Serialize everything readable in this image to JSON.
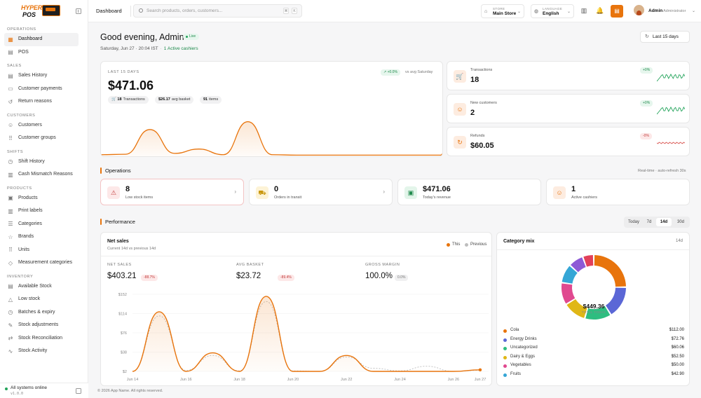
{
  "brand": {
    "line1": "HYPER",
    "line2": "POS"
  },
  "sidebar": {
    "sections": [
      {
        "title": "OPERATIONS",
        "items": [
          {
            "label": "Dashboard",
            "icon": "grid-icon",
            "glyph": "▦",
            "active": true
          },
          {
            "label": "POS",
            "icon": "pos-icon",
            "glyph": "▤"
          }
        ]
      },
      {
        "title": "SALES",
        "items": [
          {
            "label": "Sales History",
            "icon": "receipt-icon",
            "glyph": "▤"
          },
          {
            "label": "Customer payments",
            "icon": "card-icon",
            "glyph": "▭"
          },
          {
            "label": "Return reasons",
            "icon": "undo-icon",
            "glyph": "↺"
          }
        ]
      },
      {
        "title": "CUSTOMERS",
        "items": [
          {
            "label": "Customers",
            "icon": "users-icon",
            "glyph": "☺"
          },
          {
            "label": "Customer groups",
            "icon": "group-icon",
            "glyph": "⠿"
          }
        ]
      },
      {
        "title": "SHIFTS",
        "items": [
          {
            "label": "Shift History",
            "icon": "clock-icon",
            "glyph": "◷"
          },
          {
            "label": "Cash Mismatch Reasons",
            "icon": "chart-icon",
            "glyph": "▥"
          }
        ]
      },
      {
        "title": "PRODUCTS",
        "items": [
          {
            "label": "Products",
            "icon": "box-icon",
            "glyph": "▣"
          },
          {
            "label": "Print labels",
            "icon": "barcode-icon",
            "glyph": "▥"
          },
          {
            "label": "Categories",
            "icon": "list-icon",
            "glyph": "☰"
          },
          {
            "label": "Brands",
            "icon": "star-icon",
            "glyph": "☆"
          },
          {
            "label": "Units",
            "icon": "dots-icon",
            "glyph": "⠿"
          },
          {
            "label": "Measurement categories",
            "icon": "tag-icon",
            "glyph": "◇"
          }
        ]
      },
      {
        "title": "INVENTORY",
        "items": [
          {
            "label": "Available Stock",
            "icon": "stack-icon",
            "glyph": "▤"
          },
          {
            "label": "Low stock",
            "icon": "warning-icon",
            "glyph": "△"
          },
          {
            "label": "Batches & expiry",
            "icon": "timer-icon",
            "glyph": "◷"
          },
          {
            "label": "Stock adjustments",
            "icon": "edit-icon",
            "glyph": "✎"
          },
          {
            "label": "Stock Reconciliation",
            "icon": "sync-icon",
            "glyph": "⇄"
          },
          {
            "label": "Stock Activity",
            "icon": "activity-icon",
            "glyph": "∿"
          }
        ]
      }
    ],
    "status": "All systems online",
    "version": "v1.0.0"
  },
  "topbar": {
    "crumb": "Dashboard",
    "search_placeholder": "Search products, orders, customers...",
    "shortcut": [
      "⌘",
      "K"
    ],
    "store_label": "STORE",
    "store_value": "Main Store",
    "language_label": "LANGUAGE",
    "language_value": "English",
    "user_name": "Admin",
    "user_role": "Administrator"
  },
  "header": {
    "greeting": "Good evening, Admin",
    "live_label": "Live",
    "date": "Saturday, Jun 27 · 20:04 IST",
    "cashiers": "1 Active cashiers",
    "range_button": "Last 15 days"
  },
  "hero": {
    "label": "LAST 15 DAYS",
    "amount": "$471.06",
    "delta": "↗ +0.0%",
    "vs": "vs avg Saturday",
    "chips": [
      {
        "bold": "18",
        "text": "Transactions"
      },
      {
        "bold": "$26.17",
        "text": "avg basket"
      },
      {
        "bold": "91",
        "text": "items"
      }
    ],
    "spark": [
      0.02,
      0.03,
      0.6,
      0.05,
      0.15,
      0.02,
      0.78,
      0.02,
      0.01,
      0.01,
      0.01,
      0.01,
      0.01,
      0.01,
      0.01
    ]
  },
  "kpis": [
    {
      "label": "Transactions",
      "value": "18",
      "delta": "+0%",
      "trend": "up",
      "color": "#22a35a",
      "icon": "cart-icon",
      "glyph": "🛒"
    },
    {
      "label": "New customers",
      "value": "2",
      "delta": "+0%",
      "trend": "up",
      "color": "#22a35a",
      "icon": "user-icon",
      "glyph": "☺"
    },
    {
      "label": "Refunds",
      "value": "$60.05",
      "delta": "-0%",
      "trend": "down",
      "color": "#d9534f",
      "icon": "refund-icon",
      "glyph": "↻"
    }
  ],
  "operations": {
    "title": "Operations",
    "note": "Real-time · auto-refresh 30s",
    "items": [
      {
        "value": "8",
        "label": "Low stock items",
        "arrow": "›",
        "bg": "#fde8e8",
        "fg": "#c23b3b",
        "icon": "warning-icon",
        "glyph": "⚠"
      },
      {
        "value": "0",
        "label": "Orders in transit",
        "arrow": "›",
        "bg": "#fdf3d6",
        "fg": "#c9960c",
        "icon": "truck-icon",
        "glyph": "⛟"
      },
      {
        "value": "$471.06",
        "label": "Today's revenue",
        "arrow": "",
        "bg": "#e3f5ea",
        "fg": "#1f8a4c",
        "icon": "cash-icon",
        "glyph": "▣"
      },
      {
        "value": "1",
        "label": "Active cashiers",
        "arrow": "",
        "bg": "#fdece0",
        "fg": "#e8740c",
        "icon": "users-icon",
        "glyph": "☺"
      }
    ]
  },
  "performance": {
    "title": "Performance",
    "periods": [
      "Today",
      "7d",
      "14d",
      "30d"
    ],
    "active_period": "14d"
  },
  "netsales": {
    "title": "Net sales",
    "subtitle": "Current 14d vs previous 14d",
    "legend_this": "This",
    "legend_prev": "Previous",
    "metrics": [
      {
        "label": "NET SALES",
        "value": "$403.21",
        "delta": "-88.7%",
        "kind": "red"
      },
      {
        "label": "AVG BASKET",
        "value": "$23.72",
        "delta": "-89.4%",
        "kind": "red"
      },
      {
        "label": "GROSS MARGIN",
        "value": "100.0%",
        "delta": "0.0%",
        "kind": "grey"
      }
    ]
  },
  "chart_data": {
    "type": "area",
    "title": "Net sales",
    "y_ticks": [
      "$152",
      "$114",
      "$76",
      "$38",
      "$2"
    ],
    "ylim": [
      2,
      152
    ],
    "x_ticks": [
      "Jun 14",
      "Jun 16",
      "Jun 18",
      "Jun 20",
      "Jun 22",
      "Jun 24",
      "Jun 26",
      "Jun 27"
    ],
    "x": [
      "Jun 14",
      "Jun 15",
      "Jun 16",
      "Jun 17",
      "Jun 18",
      "Jun 19",
      "Jun 20",
      "Jun 21",
      "Jun 22",
      "Jun 23",
      "Jun 24",
      "Jun 25",
      "Jun 26",
      "Jun 27"
    ],
    "series": [
      {
        "name": "This",
        "color": "#e8740c",
        "values": [
          2,
          118,
          2,
          38,
          2,
          148,
          2,
          2,
          33,
          2,
          2,
          2,
          2,
          5
        ]
      },
      {
        "name": "Previous",
        "color": "#bdbdbd",
        "values": [
          2,
          110,
          4,
          33,
          3,
          138,
          3,
          2,
          30,
          8,
          3,
          12,
          2,
          4
        ]
      }
    ]
  },
  "category_mix": {
    "title": "Category mix",
    "period": "14d",
    "total": "$449.36",
    "total_label": "TOTAL TODAY",
    "items": [
      {
        "name": "Cola",
        "value": "$112.00",
        "amount": 112.0,
        "color": "#e8740c"
      },
      {
        "name": "Energy Drinks",
        "value": "$72.76",
        "amount": 72.76,
        "color": "#5b67d6"
      },
      {
        "name": "Uncategorized",
        "value": "$60.06",
        "amount": 60.06,
        "color": "#2ebd80"
      },
      {
        "name": "Dairy & Eggs",
        "value": "$52.50",
        "amount": 52.5,
        "color": "#e0b716"
      },
      {
        "name": "Vegetables",
        "value": "$50.00",
        "amount": 50.0,
        "color": "#e0498f"
      },
      {
        "name": "Fruits",
        "value": "$42.90",
        "amount": 42.9,
        "color": "#35a6d6"
      },
      {
        "name": "",
        "value": "",
        "amount": 34.0,
        "color": "#8d5ad6"
      },
      {
        "name": "",
        "value": "",
        "amount": 25.0,
        "color": "#e2405a"
      }
    ]
  },
  "footer": "© 2026 App Name. All rights reserved."
}
